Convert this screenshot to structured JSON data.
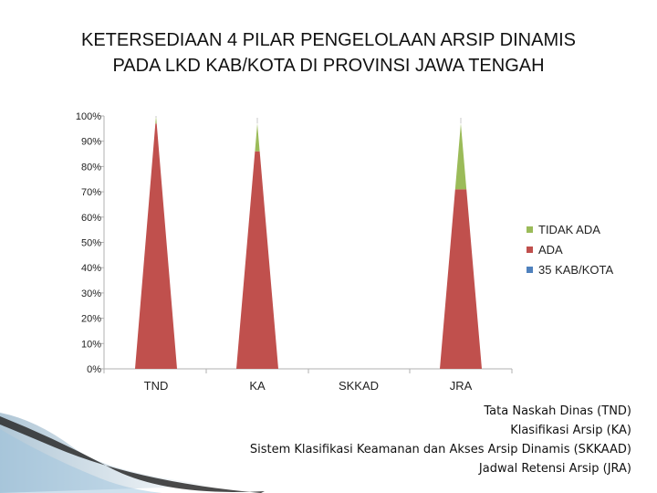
{
  "title": {
    "line1": "KETERSEDIAAN 4 PILAR PENGELOLAAN ARSIP DINAMIS",
    "line2": "PADA LKD KAB/KOTA  DI PROVINSI JAWA TENGAH"
  },
  "chart_data": {
    "type": "area",
    "stacked_percent": true,
    "categories": [
      "TND",
      "KA",
      "SKKAD",
      "JRA"
    ],
    "yticks": [
      "0%",
      "10%",
      "20%",
      "30%",
      "40%",
      "50%",
      "60%",
      "70%",
      "80%",
      "90%",
      "100%"
    ],
    "ylim": [
      0,
      100
    ],
    "series": [
      {
        "name": "35 KAB/KOTA",
        "values": [
          0,
          0,
          0,
          0
        ],
        "color": "#4f81bd"
      },
      {
        "name": "ADA",
        "values": [
          97,
          86,
          0,
          71
        ],
        "color": "#c0504d"
      },
      {
        "name": "TIDAK ADA",
        "values": [
          3,
          11,
          0,
          26
        ],
        "color": "#9bbb59"
      }
    ],
    "legend_position": "right"
  },
  "notes": [
    "Tata Naskah Dinas  (TND)",
    "Klasifikasi Arsip  (KA)",
    "Sistem Klasifikasi Keamanan dan Akses Arsip Dinamis   (SKKAAD)",
    "Jadwal Retensi Arsip  (JRA)"
  ]
}
